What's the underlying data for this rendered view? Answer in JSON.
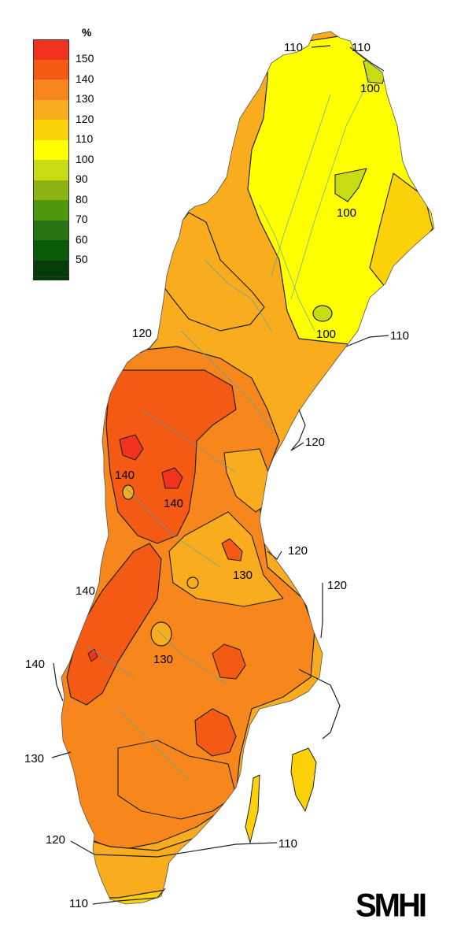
{
  "legend": {
    "unit": "%",
    "entries": [
      {
        "label": "150",
        "color": "#f0321e"
      },
      {
        "label": "140",
        "color": "#f55a14"
      },
      {
        "label": "130",
        "color": "#f7871c"
      },
      {
        "label": "120",
        "color": "#f9ad1e"
      },
      {
        "label": "110",
        "color": "#fbd20a"
      },
      {
        "label": "100",
        "color": "#ffff00"
      },
      {
        "label": "90",
        "color": "#c8dc14"
      },
      {
        "label": "80",
        "color": "#8cb414"
      },
      {
        "label": "70",
        "color": "#50960f"
      },
      {
        "label": "60",
        "color": "#287314"
      },
      {
        "label": "50",
        "color": "#0a5a0a"
      },
      {
        "label": "",
        "color": "#063c0a"
      }
    ]
  },
  "contour_labels": [
    {
      "id": "n-110-left",
      "text": "110"
    },
    {
      "id": "n-110-right",
      "text": "110"
    },
    {
      "id": "n-100-top",
      "text": "100"
    },
    {
      "id": "n-100-mid",
      "text": "100"
    },
    {
      "id": "n-100-low",
      "text": "100"
    },
    {
      "id": "e-110",
      "text": "110"
    },
    {
      "id": "w-120",
      "text": "120"
    },
    {
      "id": "e-120-a",
      "text": "120"
    },
    {
      "id": "c-140-a",
      "text": "140"
    },
    {
      "id": "c-140-b",
      "text": "140"
    },
    {
      "id": "e-120-b",
      "text": "120"
    },
    {
      "id": "e-120-c",
      "text": "120"
    },
    {
      "id": "c-130-a",
      "text": "130"
    },
    {
      "id": "w-140",
      "text": "140"
    },
    {
      "id": "c-130-b",
      "text": "130"
    },
    {
      "id": "sw-140",
      "text": "140"
    },
    {
      "id": "w-130",
      "text": "130"
    },
    {
      "id": "s-120",
      "text": "120"
    },
    {
      "id": "s-110-e",
      "text": "110"
    },
    {
      "id": "s-110-w",
      "text": "110"
    }
  ],
  "logo": "SMHI",
  "colors": {
    "outline": "#222222",
    "rivers": "#4aa6b8",
    "sea": "#ffffff"
  }
}
